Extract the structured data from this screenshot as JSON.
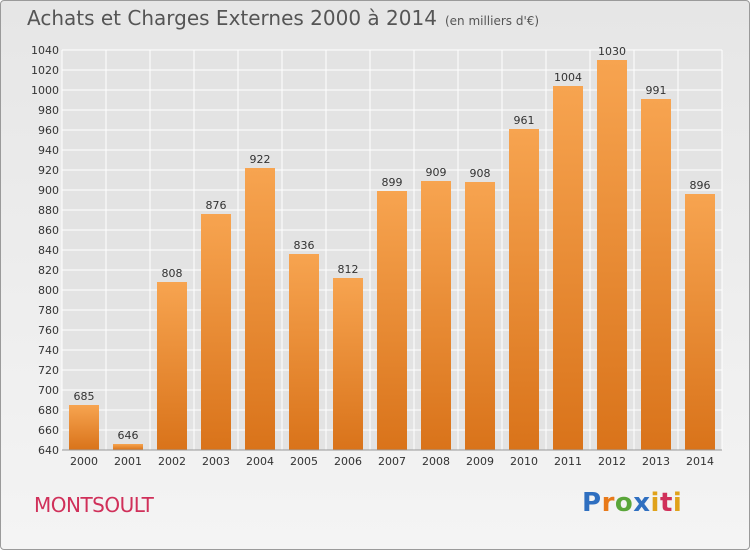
{
  "header": {
    "title": "Achats et Charges Externes 2000 à 2014",
    "unit": "(en milliers d'€)"
  },
  "commune": "MONTSOULT",
  "brand": {
    "p": "P",
    "r": "r",
    "o": "o",
    "x": "x",
    "i": "i",
    "t": "t",
    "i2": "i"
  },
  "colors": {
    "bar_light": "#f7a450",
    "bar_dark": "#d9731a",
    "grid": "#ffffff",
    "commune": "#d0305a"
  },
  "chart_data": {
    "type": "bar",
    "title": "Achats et Charges Externes 2000 à 2014",
    "subtitle": "(en milliers d'€)",
    "categories": [
      "2000",
      "2001",
      "2002",
      "2003",
      "2004",
      "2005",
      "2006",
      "2007",
      "2008",
      "2009",
      "2010",
      "2011",
      "2012",
      "2013",
      "2014"
    ],
    "values": [
      685,
      646,
      808,
      876,
      922,
      836,
      812,
      899,
      909,
      908,
      961,
      1004,
      1030,
      991,
      896
    ],
    "ylim": [
      640,
      1040
    ],
    "yticks": [
      640,
      660,
      680,
      700,
      720,
      740,
      760,
      780,
      800,
      820,
      840,
      860,
      880,
      900,
      920,
      940,
      960,
      980,
      1000,
      1020,
      1040
    ],
    "grid": true,
    "data_labels": true
  }
}
